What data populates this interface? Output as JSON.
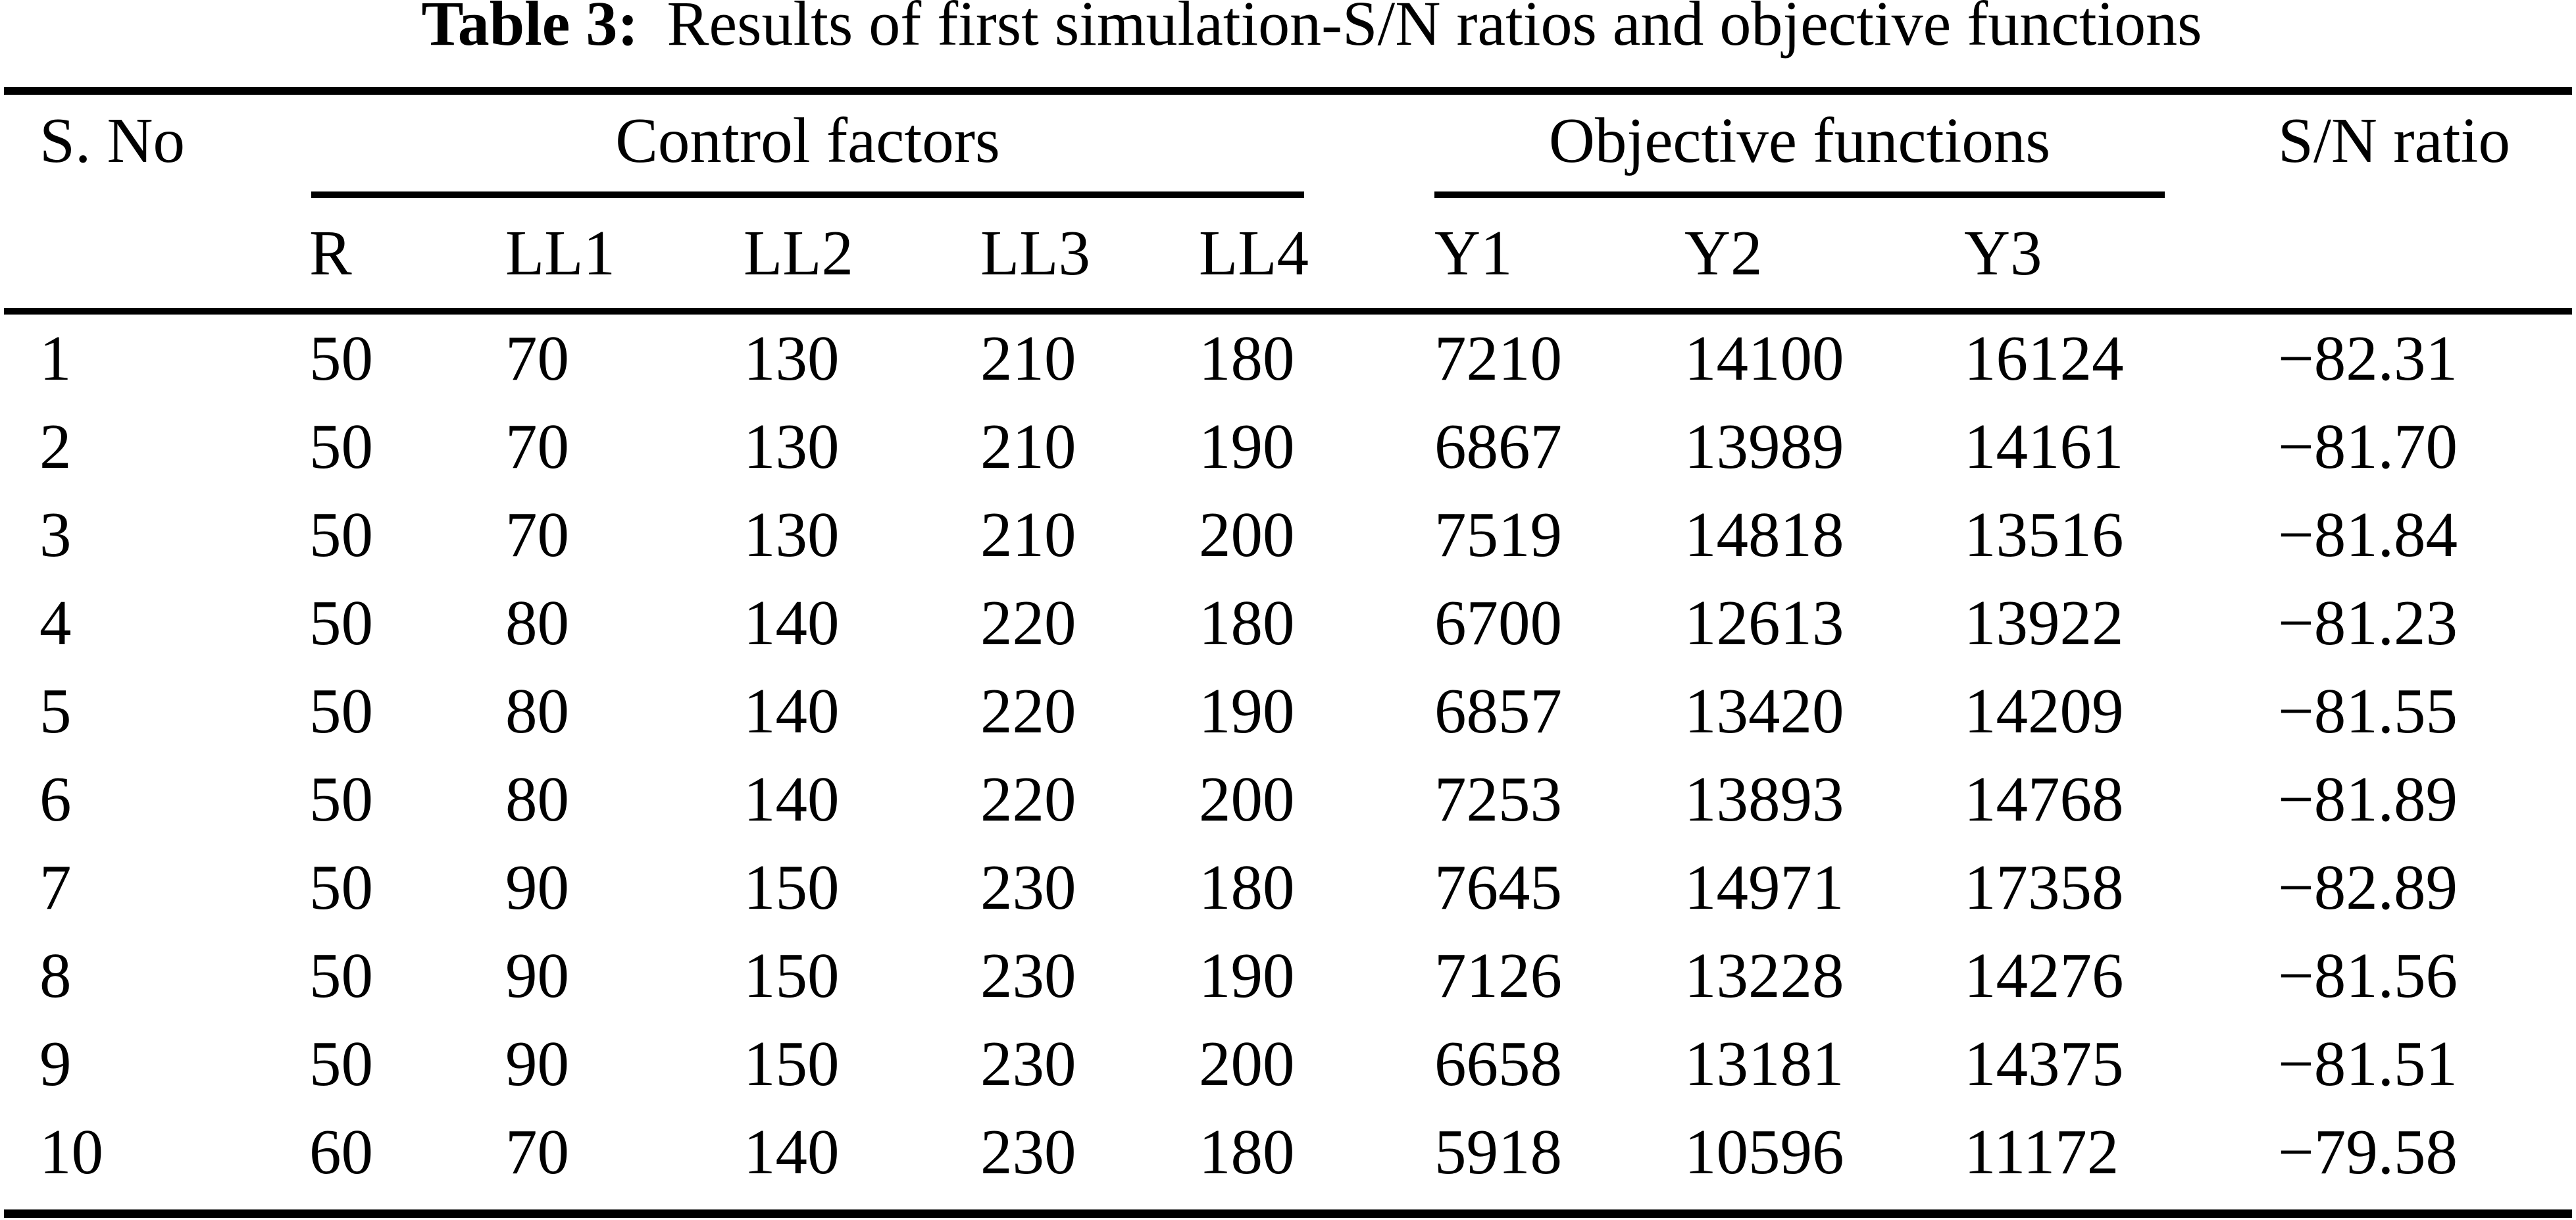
{
  "title": {
    "label": "Table 3:",
    "text": "Results of first simulation-S/N ratios and objective functions"
  },
  "colors": {
    "text": "#000000",
    "background": "#ffffff",
    "rules": "#000000"
  },
  "table": {
    "sno_header": "S. No",
    "sn_header": "S/N ratio",
    "groups": [
      {
        "label": "Control factors"
      },
      {
        "label": "Objective functions"
      }
    ],
    "sub_headers": [
      "R",
      "LL1",
      "LL2",
      "LL3",
      "LL4",
      "Y1",
      "Y2",
      "Y3"
    ],
    "rows": [
      [
        "1",
        "50",
        "70",
        "130",
        "210",
        "180",
        "7210",
        "14100",
        "16124",
        "−82.31"
      ],
      [
        "2",
        "50",
        "70",
        "130",
        "210",
        "190",
        "6867",
        "13989",
        "14161",
        "−81.70"
      ],
      [
        "3",
        "50",
        "70",
        "130",
        "210",
        "200",
        "7519",
        "14818",
        "13516",
        "−81.84"
      ],
      [
        "4",
        "50",
        "80",
        "140",
        "220",
        "180",
        "6700",
        "12613",
        "13922",
        "−81.23"
      ],
      [
        "5",
        "50",
        "80",
        "140",
        "220",
        "190",
        "6857",
        "13420",
        "14209",
        "−81.55"
      ],
      [
        "6",
        "50",
        "80",
        "140",
        "220",
        "200",
        "7253",
        "13893",
        "14768",
        "−81.89"
      ],
      [
        "7",
        "50",
        "90",
        "150",
        "230",
        "180",
        "7645",
        "14971",
        "17358",
        "−82.89"
      ],
      [
        "8",
        "50",
        "90",
        "150",
        "230",
        "190",
        "7126",
        "13228",
        "14276",
        "−81.56"
      ],
      [
        "9",
        "50",
        "90",
        "150",
        "230",
        "200",
        "6658",
        "13181",
        "14375",
        "−81.51"
      ],
      [
        "10",
        "60",
        "70",
        "140",
        "230",
        "180",
        "5918",
        "10596",
        "11172",
        "−79.58"
      ]
    ]
  }
}
